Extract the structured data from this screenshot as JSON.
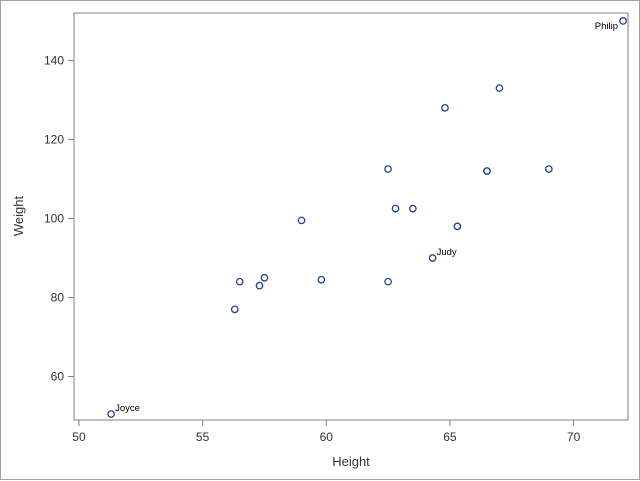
{
  "chart_data": {
    "type": "scatter",
    "xlabel": "Height",
    "ylabel": "Weight",
    "xlim": [
      49.8,
      72.2
    ],
    "ylim": [
      49,
      152
    ],
    "xticks": [
      50,
      55,
      60,
      65,
      70
    ],
    "yticks": [
      60,
      80,
      100,
      120,
      140
    ],
    "grid": false,
    "marker": {
      "shape": "open-circle",
      "color": "#1f3f8f"
    },
    "points": [
      {
        "x": 51.3,
        "y": 50.5,
        "label": "Joyce"
      },
      {
        "x": 56.3,
        "y": 77.0,
        "label": ""
      },
      {
        "x": 56.5,
        "y": 84.0,
        "label": ""
      },
      {
        "x": 57.3,
        "y": 83.0,
        "label": ""
      },
      {
        "x": 57.5,
        "y": 85.0,
        "label": ""
      },
      {
        "x": 59.0,
        "y": 99.5,
        "label": ""
      },
      {
        "x": 59.8,
        "y": 84.5,
        "label": ""
      },
      {
        "x": 62.5,
        "y": 84.0,
        "label": ""
      },
      {
        "x": 62.5,
        "y": 112.5,
        "label": ""
      },
      {
        "x": 62.8,
        "y": 102.5,
        "label": ""
      },
      {
        "x": 63.5,
        "y": 102.5,
        "label": ""
      },
      {
        "x": 64.3,
        "y": 90.0,
        "label": "Judy"
      },
      {
        "x": 64.8,
        "y": 128.0,
        "label": ""
      },
      {
        "x": 65.3,
        "y": 98.0,
        "label": ""
      },
      {
        "x": 66.5,
        "y": 112.0,
        "label": ""
      },
      {
        "x": 66.5,
        "y": 112.0,
        "label": ""
      },
      {
        "x": 67.0,
        "y": 133.0,
        "label": ""
      },
      {
        "x": 69.0,
        "y": 112.5,
        "label": ""
      },
      {
        "x": 72.0,
        "y": 150.0,
        "label": "Philip"
      }
    ]
  }
}
